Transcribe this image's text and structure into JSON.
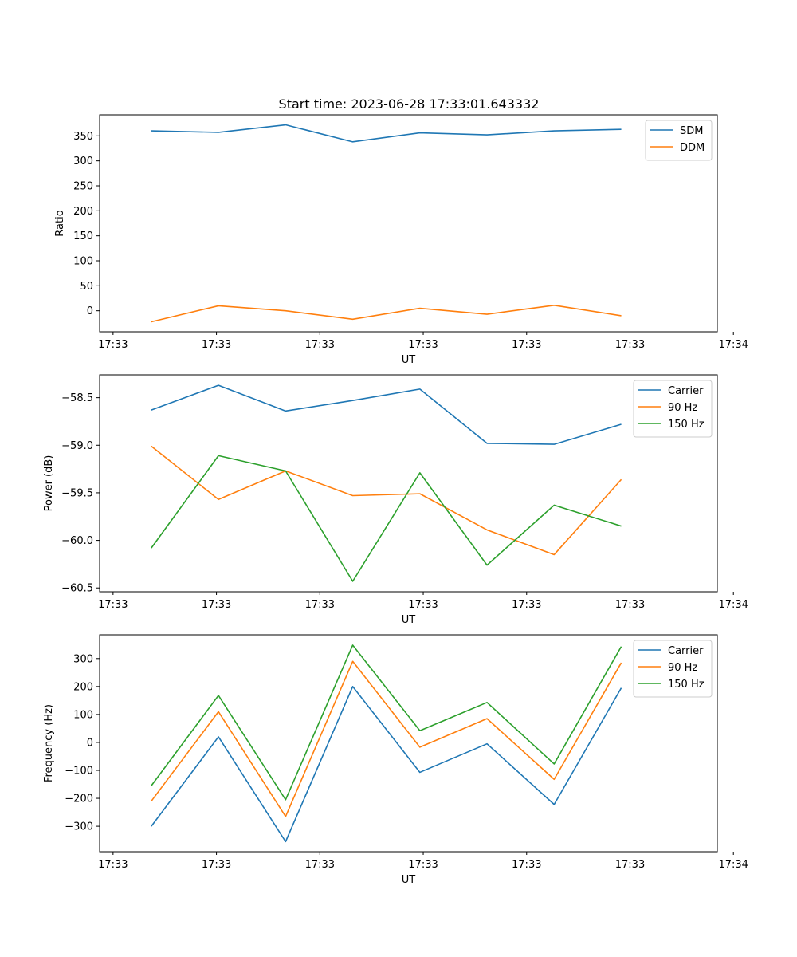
{
  "title": "Start time: 2023-06-28 17:33:01.643332",
  "chart_data": [
    {
      "type": "line",
      "xlabel": "UT",
      "ylabel": "Ratio",
      "x": [
        1,
        2,
        3,
        4,
        5,
        6,
        7,
        8
      ],
      "xlim": [
        0.23,
        9.43
      ],
      "xticks": [
        {
          "x": 0.43,
          "label": "17:33"
        },
        {
          "x": 1.97,
          "label": "17:33"
        },
        {
          "x": 3.51,
          "label": "17:33"
        },
        {
          "x": 5.05,
          "label": "17:33"
        },
        {
          "x": 6.59,
          "label": "17:33"
        },
        {
          "x": 8.13,
          "label": "17:33"
        },
        {
          "x": 9.67,
          "label": "17:34"
        }
      ],
      "ylim": [
        -42,
        392
      ],
      "yticks": [
        0,
        50,
        100,
        150,
        200,
        250,
        300,
        350
      ],
      "legend_position": "top-right",
      "series": [
        {
          "name": "SDM",
          "color": "#1f77b4",
          "values": [
            360,
            357,
            372,
            338,
            356,
            352,
            360,
            363
          ]
        },
        {
          "name": "DDM",
          "color": "#ff7f0e",
          "values": [
            -22,
            10,
            0,
            -17,
            5,
            -7,
            11,
            -10
          ]
        }
      ]
    },
    {
      "type": "line",
      "xlabel": "UT",
      "ylabel": "Power (dB)",
      "x": [
        1,
        2,
        3,
        4,
        5,
        6,
        7,
        8
      ],
      "xlim": [
        0.23,
        9.43
      ],
      "xticks": [
        {
          "x": 0.43,
          "label": "17:33"
        },
        {
          "x": 1.97,
          "label": "17:33"
        },
        {
          "x": 3.51,
          "label": "17:33"
        },
        {
          "x": 5.05,
          "label": "17:33"
        },
        {
          "x": 6.59,
          "label": "17:33"
        },
        {
          "x": 8.13,
          "label": "17:33"
        },
        {
          "x": 9.67,
          "label": "17:34"
        }
      ],
      "ylim": [
        -60.54,
        -58.26
      ],
      "yticks": [
        -60.5,
        -60.0,
        -59.5,
        -59.0,
        -58.5
      ],
      "ytick_labels": [
        "−60.5",
        "−60.0",
        "−59.5",
        "−59.0",
        "−58.5"
      ],
      "legend_position": "top-right",
      "series": [
        {
          "name": "Carrier",
          "color": "#1f77b4",
          "values": [
            -58.63,
            -58.37,
            -58.64,
            -58.53,
            -58.41,
            -58.98,
            -58.99,
            -58.78
          ]
        },
        {
          "name": "90 Hz",
          "color": "#ff7f0e",
          "values": [
            -59.01,
            -59.57,
            -59.27,
            -59.53,
            -59.51,
            -59.89,
            -60.15,
            -59.36
          ]
        },
        {
          "name": "150 Hz",
          "color": "#2ca02c",
          "values": [
            -60.08,
            -59.11,
            -59.27,
            -60.43,
            -59.29,
            -60.26,
            -59.63,
            -59.85
          ]
        }
      ]
    },
    {
      "type": "line",
      "xlabel": "UT",
      "ylabel": "Frequency (Hz)",
      "x": [
        1,
        2,
        3,
        4,
        5,
        6,
        7,
        8
      ],
      "xlim": [
        0.23,
        9.43
      ],
      "xticks": [
        {
          "x": 0.43,
          "label": "17:33"
        },
        {
          "x": 1.97,
          "label": "17:33"
        },
        {
          "x": 3.51,
          "label": "17:33"
        },
        {
          "x": 5.05,
          "label": "17:33"
        },
        {
          "x": 6.59,
          "label": "17:33"
        },
        {
          "x": 8.13,
          "label": "17:33"
        },
        {
          "x": 9.67,
          "label": "17:34"
        }
      ],
      "ylim": [
        -391,
        385
      ],
      "yticks": [
        -300,
        -200,
        -100,
        0,
        100,
        200,
        300
      ],
      "ytick_labels": [
        "−300",
        "−200",
        "−100",
        "0",
        "100",
        "200",
        "300"
      ],
      "legend_position": "top-right",
      "series": [
        {
          "name": "Carrier",
          "color": "#1f77b4",
          "values": [
            -300,
            20,
            -355,
            200,
            -107,
            -5,
            -222,
            195
          ]
        },
        {
          "name": "90 Hz",
          "color": "#ff7f0e",
          "values": [
            -210,
            110,
            -265,
            290,
            -17,
            85,
            -132,
            285
          ]
        },
        {
          "name": "150 Hz",
          "color": "#2ca02c",
          "values": [
            -155,
            168,
            -205,
            348,
            42,
            143,
            -77,
            343
          ]
        }
      ]
    }
  ]
}
